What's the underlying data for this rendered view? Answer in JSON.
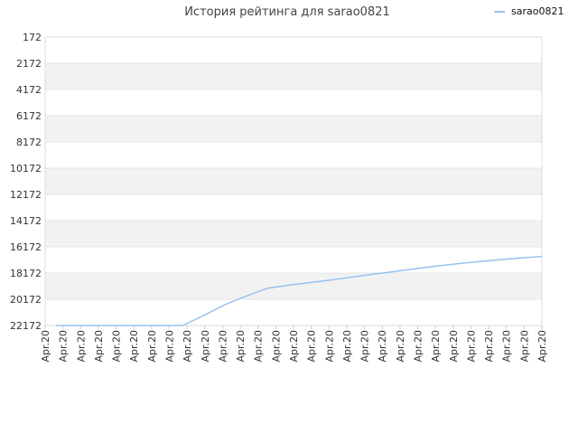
{
  "chart_data": {
    "type": "line",
    "title": "История рейтинга для sarao0821",
    "legend": {
      "position": "top-right",
      "entries": [
        "sarao0821"
      ]
    },
    "y_axis": {
      "reversed": true,
      "range": [
        172,
        22172
      ],
      "ticks": [
        172,
        2172,
        4172,
        6172,
        8172,
        10172,
        12172,
        14172,
        16172,
        18172,
        20172,
        22172
      ]
    },
    "x_axis": {
      "tick_labels": [
        "Apr.20",
        "Apr.20",
        "Apr.20",
        "Apr.20",
        "Apr.20",
        "Apr.20",
        "Apr.20",
        "Apr.20",
        "Apr.20",
        "Apr.20",
        "Apr.20",
        "Apr.20",
        "Apr.20",
        "Apr.20",
        "Apr.20",
        "Apr.20",
        "Apr.20",
        "Apr.20",
        "Apr.20",
        "Apr.20",
        "Apr.20",
        "Apr.20",
        "Apr.20",
        "Apr.20",
        "Apr.20",
        "Apr.20",
        "Apr.20",
        "Apr.20",
        "Apr.20"
      ]
    },
    "grid": true,
    "series": [
      {
        "name": "sarao0821",
        "color": "#99c2ee",
        "values": [
          22172,
          22172,
          22172,
          22172,
          22172,
          22172,
          22172,
          21400,
          20580,
          19940,
          19340,
          19100,
          18900,
          18700,
          18480,
          18260,
          18060,
          17840,
          17640,
          17460,
          17300,
          17160,
          17020,
          16900
        ]
      }
    ]
  }
}
